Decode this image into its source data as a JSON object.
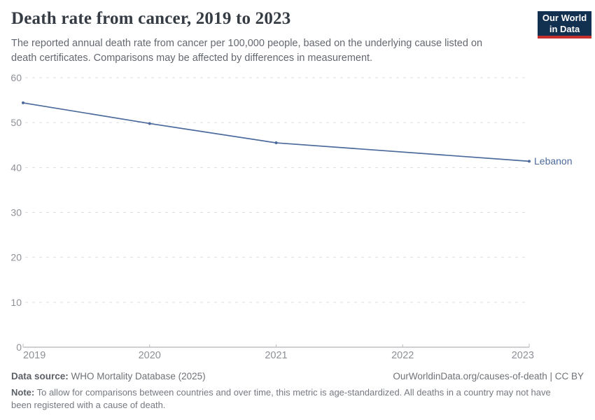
{
  "header": {
    "title": "Death rate from cancer, 2019 to 2023",
    "subtitle": "The reported annual death rate from cancer per 100,000 people, based on the underlying cause listed on death certificates. Comparisons may be affected by differences in measurement.",
    "logo": {
      "line1": "Our World",
      "line2": "in Data"
    }
  },
  "chart_data": {
    "type": "line",
    "title": "Death rate from cancer, 2019 to 2023",
    "xlabel": "",
    "ylabel": "",
    "xlim": [
      2019,
      2023
    ],
    "ylim": [
      0,
      60
    ],
    "x_ticks": [
      2019,
      2020,
      2021,
      2022,
      2023
    ],
    "y_ticks": [
      0,
      10,
      20,
      30,
      40,
      50,
      60
    ],
    "grid": "horizontal dashed gridlines, solid baseline at 0",
    "legend_position": "end-of-line label",
    "series": [
      {
        "name": "Lebanon",
        "x": [
          2019,
          2020,
          2021,
          2023
        ],
        "values": [
          54.4,
          49.8,
          45.5,
          41.4
        ],
        "color": "#4c6a9c",
        "note": "no data point for 2022; straight segment connects 2021 to 2023"
      }
    ]
  },
  "footer": {
    "datasource_label": "Data source:",
    "datasource_value": " WHO Mortality Database (2025)",
    "license": "OurWorldinData.org/causes-of-death | CC BY",
    "note_label": "Note:",
    "note_value": " To allow for comparisons between countries and over time, this metric is age-standardized. All deaths in a country may not have been registered with a cause of death."
  },
  "colors": {
    "line": "#4c6a9c",
    "grid": "#dcdee1",
    "axis": "#9fa2a6",
    "tick": "#b9bcc0",
    "tick_label": "#8d9096",
    "logo_bg": "#12304f",
    "logo_red": "#c5302f"
  }
}
